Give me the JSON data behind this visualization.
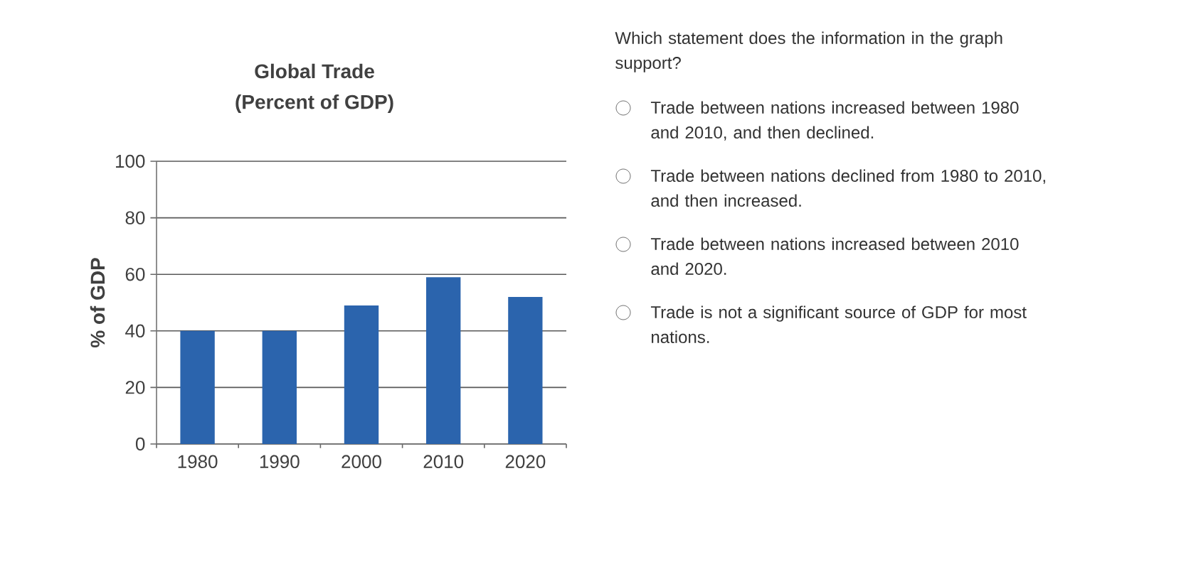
{
  "chart_data": {
    "type": "bar",
    "title": "Global Trade",
    "subtitle": "(Percent of GDP)",
    "ylabel": "% of GDP",
    "categories": [
      "1980",
      "1990",
      "2000",
      "2010",
      "2020"
    ],
    "values": [
      40,
      40,
      49,
      59,
      52
    ],
    "color": "#2b64ad",
    "ylim": [
      0,
      100
    ],
    "yticks": [
      0,
      20,
      40,
      60,
      80,
      100
    ],
    "grid": "y",
    "annotations": [
      "Which statement does the information in the graph support?",
      "Trade between nations increased between 1980 and 2010, and then declined.",
      "Trade between nations declined from 1980 to 2010, and then increased.",
      "Trade between nations increased between 2010 and 2020.",
      "Trade is not a significant source of GDP for most nations."
    ]
  }
}
